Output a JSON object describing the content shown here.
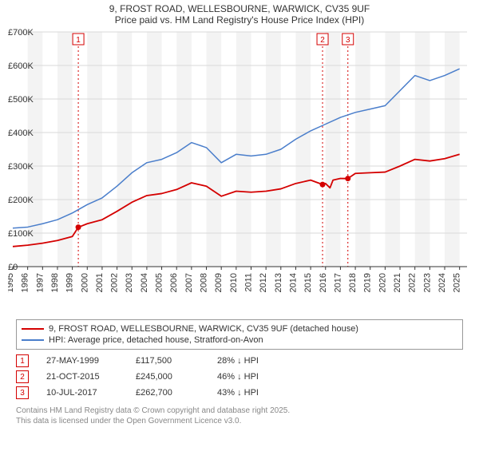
{
  "title_line1": "9, FROST ROAD, WELLESBOURNE, WARWICK, CV35 9UF",
  "title_line2": "Price paid vs. HM Land Registry's House Price Index (HPI)",
  "chart": {
    "type": "line",
    "background_color": "#ffffff",
    "grid_color": "#d9d9d9",
    "alt_band_color": "#f3f3f3",
    "axis_color": "#333333",
    "x_years": [
      1995,
      1996,
      1997,
      1998,
      1999,
      2000,
      2001,
      2002,
      2003,
      2004,
      2005,
      2006,
      2007,
      2008,
      2009,
      2010,
      2011,
      2012,
      2013,
      2014,
      2015,
      2016,
      2017,
      2018,
      2019,
      2020,
      2021,
      2022,
      2023,
      2024,
      2025
    ],
    "x_range": [
      1995,
      2025.5
    ],
    "y_range": [
      0,
      700
    ],
    "y_ticks": [
      0,
      100,
      200,
      300,
      400,
      500,
      600,
      700
    ],
    "y_tick_labels": [
      "£0",
      "£100K",
      "£200K",
      "£300K",
      "£400K",
      "£500K",
      "£600K",
      "£700K"
    ],
    "series": [
      {
        "name": "property",
        "color": "#d40000",
        "width": 1.8,
        "points": [
          [
            1995,
            60
          ],
          [
            1996,
            64
          ],
          [
            1997,
            70
          ],
          [
            1998,
            78
          ],
          [
            1999,
            90
          ],
          [
            1999.4,
            117.5
          ],
          [
            2000,
            128
          ],
          [
            2001,
            140
          ],
          [
            2002,
            165
          ],
          [
            2003,
            192
          ],
          [
            2004,
            212
          ],
          [
            2005,
            218
          ],
          [
            2006,
            230
          ],
          [
            2007,
            250
          ],
          [
            2008,
            240
          ],
          [
            2009,
            210
          ],
          [
            2010,
            225
          ],
          [
            2011,
            222
          ],
          [
            2012,
            225
          ],
          [
            2013,
            232
          ],
          [
            2014,
            248
          ],
          [
            2015,
            258
          ],
          [
            2015.8,
            245
          ],
          [
            2016,
            248
          ],
          [
            2016.3,
            235
          ],
          [
            2016.5,
            258
          ],
          [
            2017,
            263
          ],
          [
            2017.5,
            262.7
          ],
          [
            2018,
            278
          ],
          [
            2019,
            280
          ],
          [
            2020,
            282
          ],
          [
            2021,
            300
          ],
          [
            2022,
            320
          ],
          [
            2023,
            315
          ],
          [
            2024,
            322
          ],
          [
            2025,
            335
          ]
        ]
      },
      {
        "name": "hpi",
        "color": "#4a7ecb",
        "width": 1.5,
        "points": [
          [
            1995,
            115
          ],
          [
            1996,
            118
          ],
          [
            1997,
            128
          ],
          [
            1998,
            140
          ],
          [
            1999,
            160
          ],
          [
            2000,
            185
          ],
          [
            2001,
            205
          ],
          [
            2002,
            240
          ],
          [
            2003,
            280
          ],
          [
            2004,
            310
          ],
          [
            2005,
            320
          ],
          [
            2006,
            340
          ],
          [
            2007,
            370
          ],
          [
            2008,
            355
          ],
          [
            2009,
            310
          ],
          [
            2010,
            335
          ],
          [
            2011,
            330
          ],
          [
            2012,
            335
          ],
          [
            2013,
            350
          ],
          [
            2014,
            380
          ],
          [
            2015,
            405
          ],
          [
            2016,
            425
          ],
          [
            2017,
            445
          ],
          [
            2018,
            460
          ],
          [
            2019,
            470
          ],
          [
            2020,
            480
          ],
          [
            2021,
            525
          ],
          [
            2022,
            570
          ],
          [
            2023,
            555
          ],
          [
            2024,
            570
          ],
          [
            2025,
            590
          ]
        ]
      }
    ],
    "sale_markers": [
      {
        "x": 1999.4,
        "y": 117.5,
        "color": "#d40000"
      },
      {
        "x": 2015.8,
        "y": 245,
        "color": "#d40000"
      },
      {
        "x": 2017.5,
        "y": 262.7,
        "color": "#d40000"
      }
    ],
    "event_lines": [
      {
        "x": 1999.4,
        "label": "1",
        "color": "#d40000"
      },
      {
        "x": 2015.8,
        "label": "2",
        "color": "#d40000"
      },
      {
        "x": 2017.5,
        "label": "3",
        "color": "#d40000"
      }
    ]
  },
  "legend": {
    "row1": {
      "color": "#d40000",
      "text": "9, FROST ROAD, WELLESBOURNE, WARWICK, CV35 9UF (detached house)"
    },
    "row2": {
      "color": "#4a7ecb",
      "text": "HPI: Average price, detached house, Stratford-on-Avon"
    }
  },
  "events": [
    {
      "num": "1",
      "color": "#d40000",
      "date": "27-MAY-1999",
      "price": "£117,500",
      "delta": "28% ↓ HPI"
    },
    {
      "num": "2",
      "color": "#d40000",
      "date": "21-OCT-2015",
      "price": "£245,000",
      "delta": "46% ↓ HPI"
    },
    {
      "num": "3",
      "color": "#d40000",
      "date": "10-JUL-2017",
      "price": "£262,700",
      "delta": "43% ↓ HPI"
    }
  ],
  "footer_line1": "Contains HM Land Registry data © Crown copyright and database right 2025.",
  "footer_line2": "This data is licensed under the Open Government Licence v3.0."
}
